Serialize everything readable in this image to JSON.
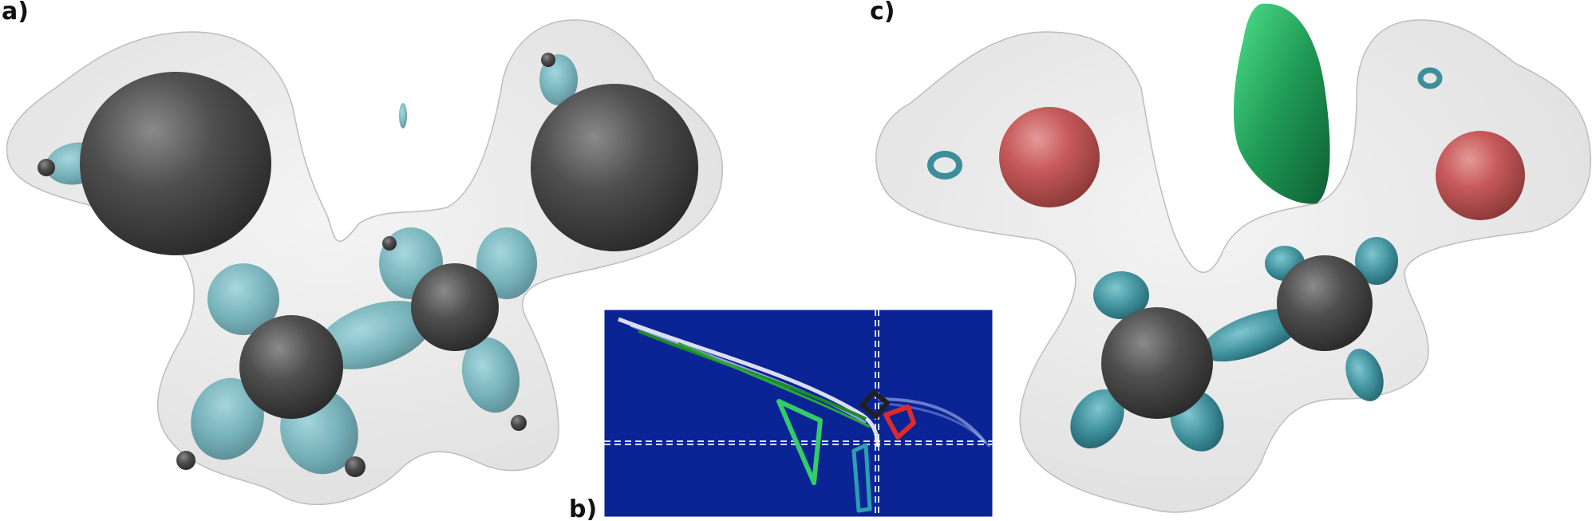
{
  "panels": {
    "a": {
      "label": "a)"
    },
    "b": {
      "label": "b)"
    },
    "c": {
      "label": "c)"
    }
  },
  "colors": {
    "envelope": "#d9d9d9",
    "atom_dark": "#4a4a4a",
    "lobe_cyan": "#5aa8b4",
    "atom_red": "#c85a5a",
    "lobe_green": "#1f9a55",
    "inset_background": "#0a2496",
    "inset_green_curve": "#1e8a2a",
    "inset_outline_green": "#33cc66",
    "inset_outline_red": "#dd2a2a"
  },
  "icons": {
    "panel_a": "molecule-isosurface",
    "panel_b": "persistence-plot-inset",
    "panel_c": "molecule-isosurface"
  }
}
